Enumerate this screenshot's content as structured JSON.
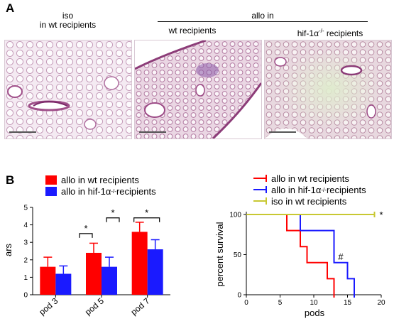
{
  "panel_a": {
    "letter": "A",
    "iso_header_line1": "iso",
    "iso_header_line2": "in wt recipients",
    "allo_header": "allo in",
    "allo_wt_header": "wt recipients",
    "allo_hif_header_prefix": "hif-1α",
    "allo_hif_header_sup": "-/-",
    "allo_hif_header_suffix": " recipients"
  },
  "panel_b": {
    "letter": "B"
  },
  "colors": {
    "allo_wt": "#ff0000",
    "allo_hif": "#1a1aff",
    "iso_wt": "#c8c832"
  },
  "chart_data": [
    {
      "type": "bar",
      "ylabel": "ars",
      "ylim": [
        0,
        5
      ],
      "yticks": [
        "0",
        "1",
        "2",
        "3",
        "4",
        "5"
      ],
      "categories": [
        "pod 3",
        "pod 5",
        "pod 7"
      ],
      "legend": [
        {
          "name_prefix": "allo in wt recipients",
          "sup": "",
          "suffix": ""
        },
        {
          "name_prefix": "allo in hif-1α",
          "sup": "-/-",
          "suffix": " recipients"
        }
      ],
      "series": [
        {
          "name": "allo in wt recipients",
          "values": [
            1.6,
            2.4,
            3.6
          ],
          "errors": [
            0.55,
            0.55,
            0.55
          ]
        },
        {
          "name": "allo in hif-1α-/- recipients",
          "values": [
            1.2,
            1.6,
            2.6
          ],
          "errors": [
            0.45,
            0.55,
            0.55
          ]
        }
      ],
      "significance": [
        {
          "category": "pod 5",
          "label": "*",
          "between": "wt-vs-hif"
        },
        {
          "category": "pod 5",
          "label": "*",
          "between": "pod3-vs-pod5"
        },
        {
          "category": "pod 7",
          "label": "*",
          "between": "wt-vs-hif"
        }
      ],
      "legend_position": "top-left"
    },
    {
      "type": "line",
      "xlabel": "pods",
      "ylabel": "percent survival",
      "xlim": [
        0,
        20
      ],
      "ylim": [
        0,
        100
      ],
      "xticks": [
        "0",
        "5",
        "10",
        "15",
        "20"
      ],
      "yticks": [
        "0",
        "50",
        "100"
      ],
      "legend": [
        {
          "name_prefix": "allo in wt recipients",
          "sup": "",
          "suffix": ""
        },
        {
          "name_prefix": "allo in hif-1α",
          "sup": "-/-",
          "suffix": " recipients"
        },
        {
          "name_prefix": "iso in wt recipients",
          "sup": "",
          "suffix": ""
        }
      ],
      "series": [
        {
          "name": "allo in wt recipients",
          "step_x": [
            0,
            6,
            6,
            8,
            8,
            9,
            9,
            12,
            12,
            13,
            13
          ],
          "step_y": [
            100,
            100,
            80,
            80,
            60,
            60,
            40,
            40,
            20,
            20,
            0
          ]
        },
        {
          "name": "allo in hif-1α-/- recipients",
          "step_x": [
            0,
            8,
            8,
            13,
            13,
            15,
            15,
            16,
            16
          ],
          "step_y": [
            100,
            100,
            80,
            80,
            40,
            40,
            20,
            20,
            0
          ]
        },
        {
          "name": "iso in wt recipients",
          "step_x": [
            0,
            19
          ],
          "step_y": [
            100,
            100
          ]
        }
      ],
      "annotations": [
        {
          "label": "#",
          "x": 14,
          "y": 48
        },
        {
          "label": "*",
          "x": 20,
          "y": 100
        }
      ],
      "legend_position": "top"
    }
  ]
}
